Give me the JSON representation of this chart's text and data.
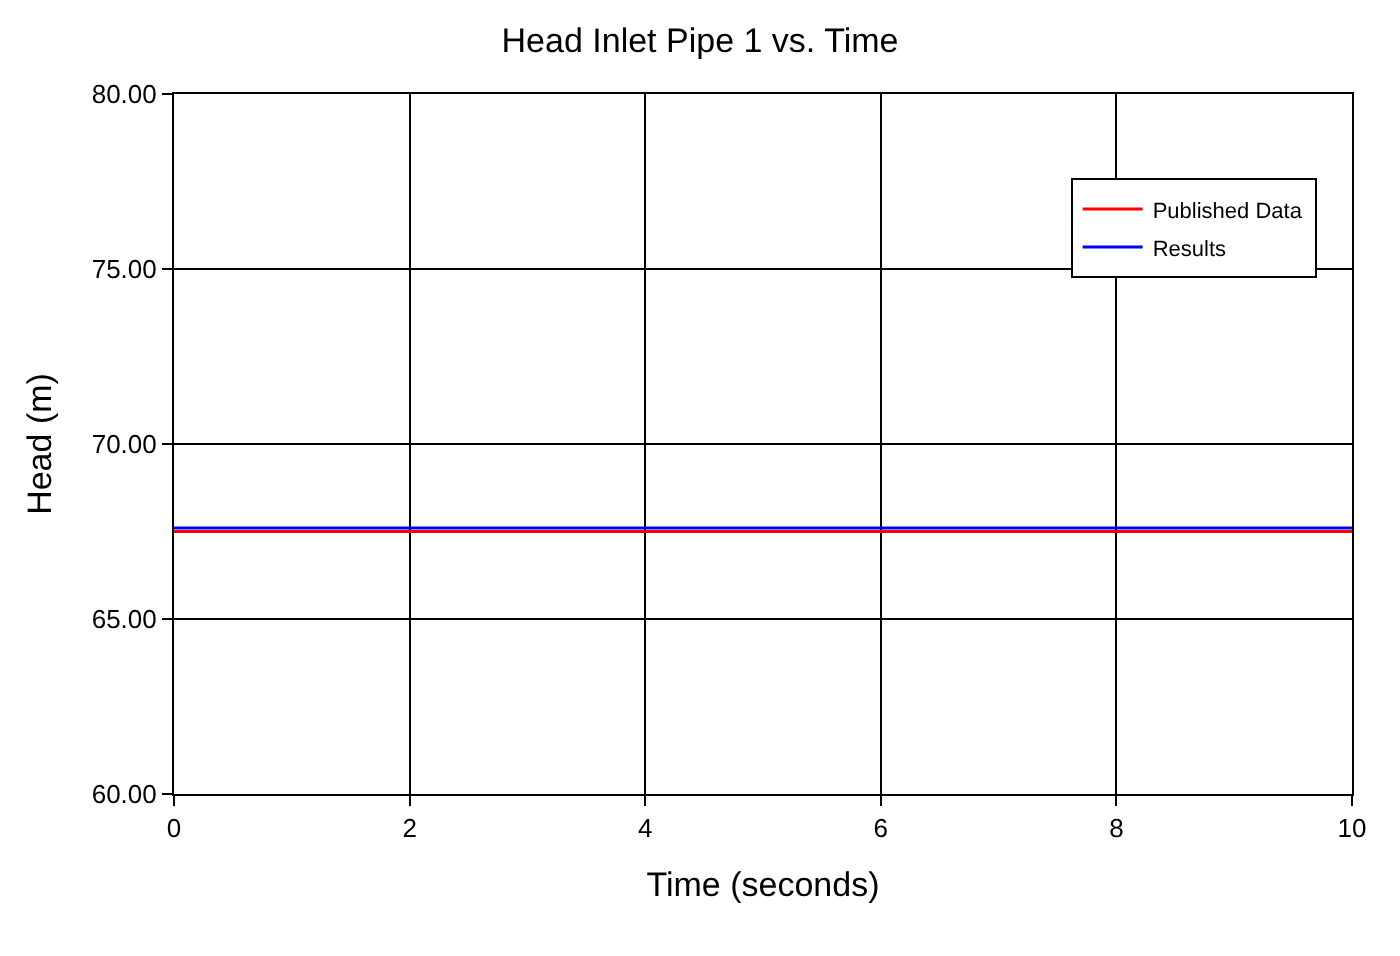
{
  "chart_data": {
    "type": "line",
    "title": "Head Inlet Pipe 1 vs. Time",
    "xlabel": "Time (seconds)",
    "ylabel": "Head (m)",
    "x": [
      0,
      10
    ],
    "series": [
      {
        "name": "Published Data",
        "color": "#ff0000",
        "values": [
          67.5,
          67.5
        ]
      },
      {
        "name": "Results",
        "color": "#0000ff",
        "values": [
          67.6,
          67.6
        ]
      }
    ],
    "xlim": [
      0,
      10
    ],
    "xticks": [
      0,
      2,
      4,
      6,
      8,
      10
    ],
    "ylim": [
      60,
      80
    ],
    "yticks": [
      {
        "value": 60,
        "label": "60.00"
      },
      {
        "value": 65,
        "label": "65.00"
      },
      {
        "value": 70,
        "label": "70.00"
      },
      {
        "value": 75,
        "label": "75.00"
      },
      {
        "value": 80,
        "label": "80.00"
      }
    ],
    "grid": true,
    "legend": "top right",
    "marker": "none",
    "line_style": "solid"
  }
}
